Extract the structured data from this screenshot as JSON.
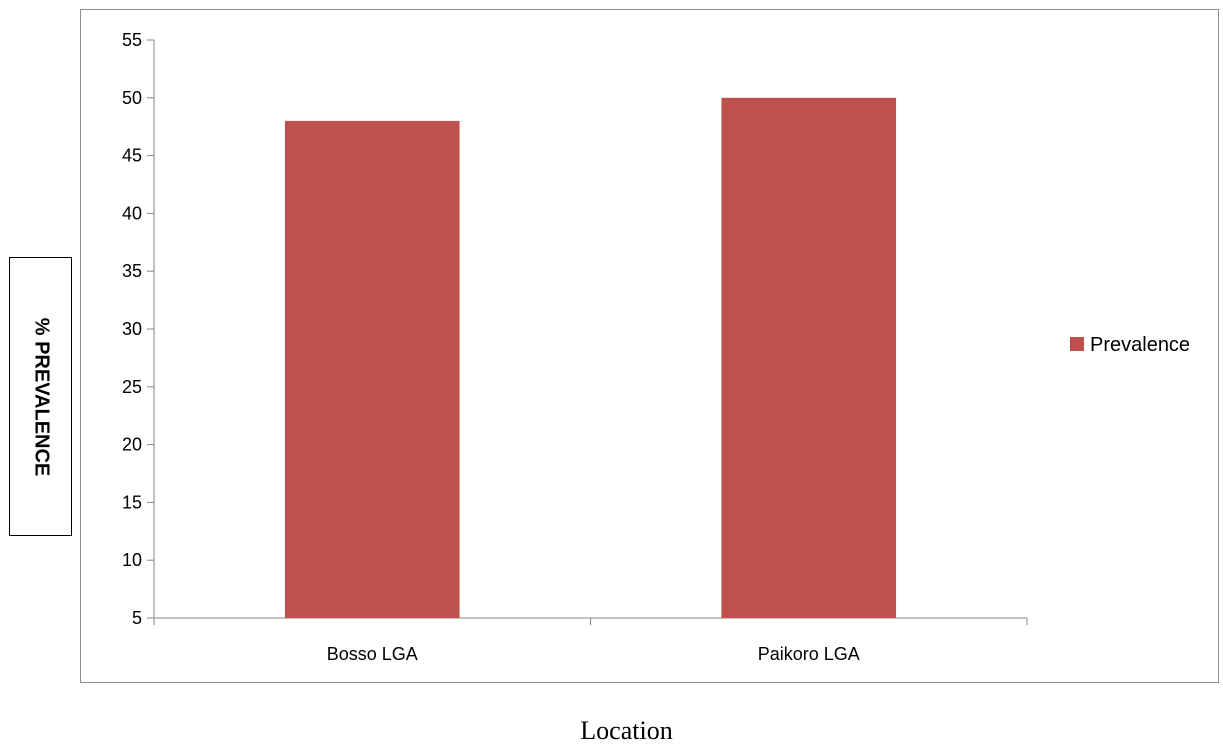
{
  "chart_data": {
    "type": "bar",
    "categories": [
      "Bosso LGA",
      "Paikoro LGA"
    ],
    "series": [
      {
        "name": "Prevalence",
        "values": [
          48,
          50
        ],
        "color": "#c0504d"
      }
    ],
    "ylabel": "% PREVALENCE",
    "xlabel": "Location",
    "ylim": [
      5,
      55
    ],
    "yticks": [
      5,
      10,
      15,
      20,
      25,
      30,
      35,
      40,
      45,
      50,
      55
    ],
    "grid": false,
    "legend_position": "right"
  }
}
